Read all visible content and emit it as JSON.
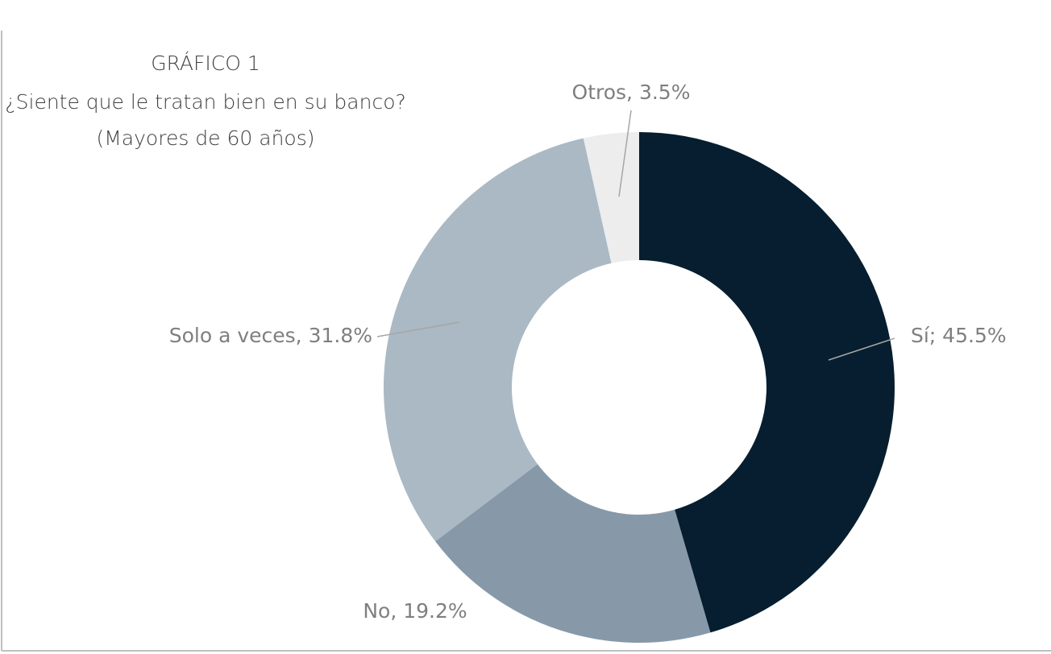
{
  "chart_data": {
    "type": "donut",
    "title": "GRÁFICO 1",
    "subtitle": [
      "¿Siente que le tratan bien en su banco?",
      "(Mayores de 60 años)"
    ],
    "categories": [
      "Sí",
      "No",
      "Solo a veces",
      "Otros"
    ],
    "values": [
      45.5,
      19.2,
      31.8,
      3.5
    ],
    "value_labels": [
      "Sí; 45.5%",
      "No, 19.2%",
      "Solo a veces, 31.8%",
      "Otros, 3.5%"
    ],
    "colors": [
      "#061e2f",
      "#8799a8",
      "#aab9c3",
      "#ededee"
    ]
  }
}
